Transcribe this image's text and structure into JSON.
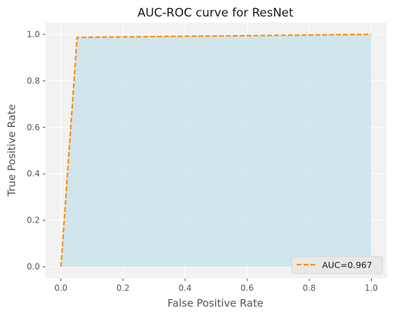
{
  "chart_data": {
    "type": "area",
    "title": "AUC-ROC curve for ResNet",
    "xlabel": "False Positive Rate",
    "ylabel": "True Positive Rate",
    "xlim": [
      -0.05,
      1.05
    ],
    "ylim": [
      -0.05,
      1.05
    ],
    "x_ticks": [
      0.0,
      0.2,
      0.4,
      0.6,
      0.8,
      1.0
    ],
    "y_ticks": [
      0.0,
      0.2,
      0.4,
      0.6,
      0.8,
      1.0
    ],
    "x_tick_labels": [
      "0.0",
      "0.2",
      "0.4",
      "0.6",
      "0.8",
      "1.0"
    ],
    "y_tick_labels": [
      "0.0",
      "0.2",
      "0.4",
      "0.6",
      "0.8",
      "1.0"
    ],
    "grid": true,
    "legend_position": "lower-right",
    "series": [
      {
        "name": "AUC=0.967",
        "style": "dashed",
        "color": "#ff8c00",
        "fill_color": "#add8e6",
        "x": [
          0.0,
          0.052,
          1.0
        ],
        "y": [
          0.0,
          0.987,
          1.0
        ]
      }
    ]
  },
  "colors": {
    "plot_background": "#f2f2f2",
    "grid": "#ffffff",
    "line": "#ff8c00",
    "fill": "#add8e6"
  }
}
